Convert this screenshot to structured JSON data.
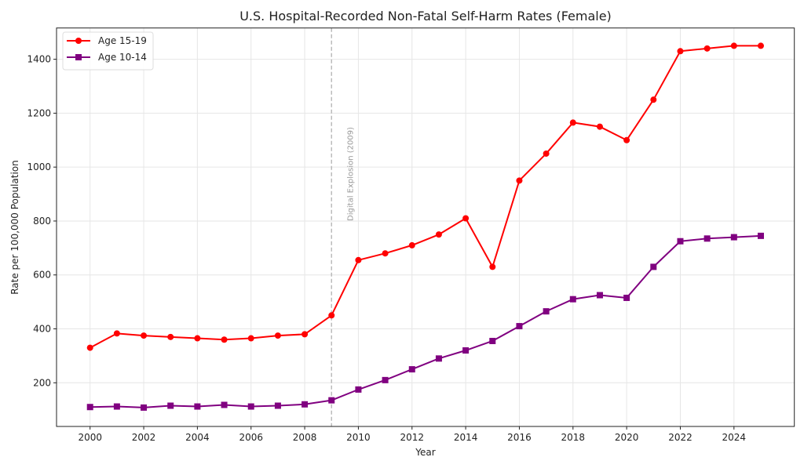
{
  "chart_data": {
    "type": "line",
    "title": "U.S. Hospital-Recorded Non-Fatal Self-Harm Rates (Female)",
    "xlabel": "Year",
    "ylabel": "Rate per 100,000 Population",
    "x": [
      2000,
      2001,
      2002,
      2003,
      2004,
      2005,
      2006,
      2007,
      2008,
      2009,
      2010,
      2011,
      2012,
      2013,
      2014,
      2015,
      2016,
      2017,
      2018,
      2019,
      2020,
      2021,
      2022,
      2023,
      2024,
      2025
    ],
    "xlim": [
      1998.75,
      2026.25
    ],
    "ylim": [
      38,
      1516
    ],
    "xticks": [
      2000,
      2002,
      2004,
      2006,
      2008,
      2010,
      2012,
      2014,
      2016,
      2018,
      2020,
      2022,
      2024
    ],
    "yticks": [
      200,
      400,
      600,
      800,
      1000,
      1200,
      1400
    ],
    "grid": true,
    "legend_position": "top-left",
    "series": [
      {
        "name": "Age 15-19",
        "color": "#ff0000",
        "marker": "circle",
        "values": [
          330,
          383,
          375,
          370,
          365,
          360,
          365,
          375,
          380,
          450,
          655,
          680,
          710,
          750,
          810,
          630,
          950,
          1050,
          1165,
          1150,
          1100,
          1250,
          1430,
          1440,
          1450,
          1450
        ]
      },
      {
        "name": "Age 10-14",
        "color": "#800080",
        "marker": "square",
        "values": [
          110,
          112,
          108,
          115,
          112,
          118,
          112,
          115,
          120,
          135,
          175,
          210,
          250,
          290,
          320,
          355,
          410,
          465,
          510,
          525,
          515,
          630,
          725,
          735,
          740,
          745
        ]
      }
    ],
    "annotations": [
      {
        "type": "vline",
        "x": 2009,
        "style": "dashed",
        "color": "#bbbbbb",
        "label": "Digital Explosion (2009)",
        "label_y": 800,
        "label_color": "#999999"
      }
    ]
  }
}
